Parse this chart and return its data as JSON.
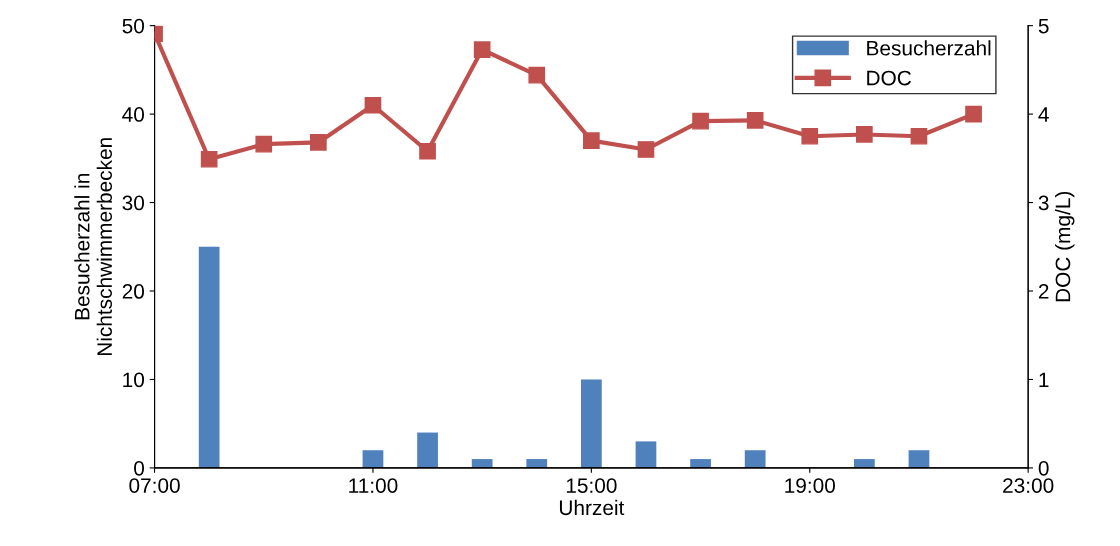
{
  "chart_data": {
    "type": "bar",
    "xlabel": "Uhrzeit",
    "ylabel": "Besucherzahl in\nNichtschwimmerbecken",
    "y2label": "DOC (mg/L)",
    "xlim": [
      7,
      23
    ],
    "xticks": [
      {
        "value": 7,
        "label": "07:00"
      },
      {
        "value": 11,
        "label": "11:00"
      },
      {
        "value": 15,
        "label": "15:00"
      },
      {
        "value": 19,
        "label": "19:00"
      },
      {
        "value": 23,
        "label": "23:00"
      }
    ],
    "ylim": [
      0,
      50
    ],
    "yticks": [
      0,
      10,
      20,
      30,
      40,
      50
    ],
    "y2lim": [
      0,
      5
    ],
    "y2ticks": [
      0,
      1,
      2,
      3,
      4,
      5
    ],
    "grid": false,
    "legend": "top right",
    "series": [
      {
        "name": "Besucherzahl",
        "color": "#4f81bd",
        "x": [
          8,
          9,
          10,
          11,
          12,
          13,
          14,
          15,
          16,
          17,
          18,
          19,
          20,
          21,
          22
        ],
        "values": [
          25,
          0,
          0,
          2,
          4,
          1,
          1,
          10,
          3,
          1,
          2,
          0,
          1,
          2,
          0
        ]
      },
      {
        "name": "DOC",
        "type": "line",
        "axis": "y2",
        "color": "#c0504d",
        "marker": "square",
        "line_style": "solid",
        "x": [
          7,
          8,
          9,
          10,
          11,
          12,
          13,
          14,
          15,
          16,
          17,
          18,
          19,
          20,
          21,
          22
        ],
        "values": [
          4.91,
          3.49,
          3.66,
          3.68,
          4.1,
          3.58,
          4.73,
          4.44,
          3.7,
          3.6,
          3.92,
          3.93,
          3.75,
          3.77,
          3.75,
          4.0
        ]
      }
    ]
  }
}
